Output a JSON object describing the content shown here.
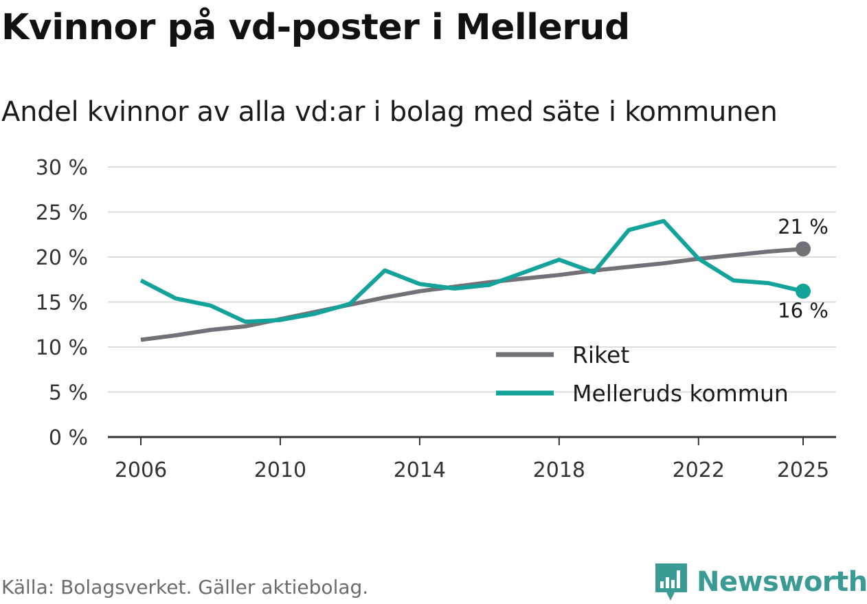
{
  "title": "Kvinnor på vd-poster i Mellerud",
  "subtitle": "Andel kvinnor av alla vd:ar i bolag med säte i kommunen",
  "source": "Källa: Bolagsverket. Gäller aktiebolag.",
  "brand": "Newsworthy",
  "colors": {
    "riket": "#737078",
    "mellerud": "#13a39a",
    "grid": "#dddddd",
    "axis": "#333333"
  },
  "chart_data": {
    "type": "line",
    "title": "Kvinnor på vd-poster i Mellerud",
    "xlabel": "",
    "ylabel": "",
    "x": [
      2006,
      2007,
      2008,
      2009,
      2010,
      2011,
      2012,
      2013,
      2014,
      2015,
      2016,
      2017,
      2018,
      2019,
      2020,
      2021,
      2022,
      2023,
      2024,
      2025
    ],
    "xticks": [
      "2006",
      "2010",
      "2014",
      "2018",
      "2022",
      "2025"
    ],
    "xtick_values": [
      2006,
      2010,
      2014,
      2018,
      2022,
      2025
    ],
    "yticks": [
      "0 %",
      "5 %",
      "10 %",
      "15 %",
      "20 %",
      "25 %",
      "30 %"
    ],
    "ytick_values": [
      0,
      5,
      10,
      15,
      20,
      25,
      30
    ],
    "ylim": [
      0,
      30
    ],
    "grid": true,
    "legend_position": "bottom-right",
    "series": [
      {
        "name": "Riket",
        "values": [
          10.8,
          11.3,
          11.9,
          12.3,
          13.1,
          13.9,
          14.7,
          15.5,
          16.2,
          16.7,
          17.2,
          17.6,
          18.0,
          18.5,
          18.9,
          19.3,
          19.8,
          20.2,
          20.6,
          20.9
        ],
        "end_label": "21 %"
      },
      {
        "name": "Melleruds kommun",
        "values": [
          17.4,
          15.4,
          14.6,
          12.8,
          13.0,
          13.7,
          14.8,
          18.5,
          17.0,
          16.5,
          16.9,
          18.3,
          19.7,
          18.3,
          23.0,
          24.0,
          19.8,
          17.4,
          17.1,
          16.2
        ],
        "end_label": "16 %"
      }
    ]
  }
}
